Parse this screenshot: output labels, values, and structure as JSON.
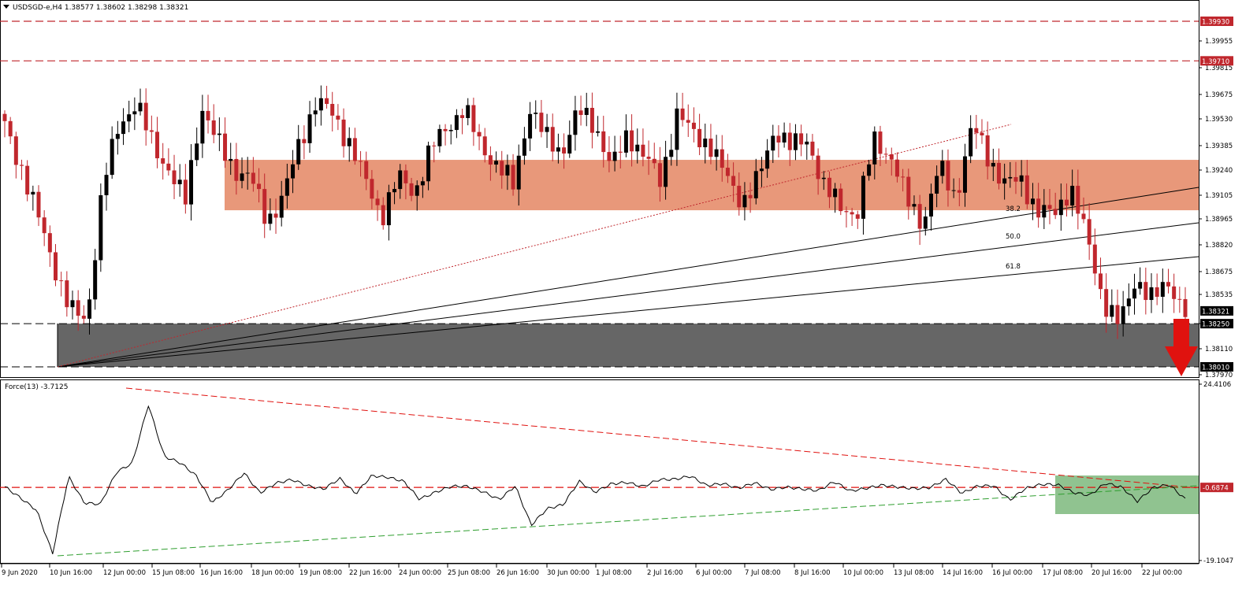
{
  "main_chart": {
    "header": "USDSGD-e,H4  1.38577 1.38602 1.38298 1.38321",
    "y_ticks": [
      "1.39955",
      "1.39815",
      "1.39675",
      "1.39530",
      "1.39385",
      "1.39240",
      "1.39105",
      "1.38965",
      "1.38820",
      "1.38675",
      "1.38535",
      "1.38395",
      "1.38110",
      "1.37970"
    ],
    "price_tags": [
      {
        "label": "1.39930",
        "value": 1.3993,
        "bg": "#c0272d"
      },
      {
        "label": "1.39710",
        "value": 1.3971,
        "bg": "#c0272d"
      },
      {
        "label": "1.38321",
        "value": 1.38321,
        "bg": "#000000"
      },
      {
        "label": "1.38250",
        "value": 1.3825,
        "bg": "#000000"
      },
      {
        "label": "1.38010",
        "value": 1.3801,
        "bg": "#000000"
      }
    ],
    "fib_labels": [
      "38.2",
      "50.0",
      "61.8"
    ],
    "zones": {
      "resistance": {
        "from": 1.3888,
        "to": 1.3916,
        "color": "#e8987a"
      },
      "support": {
        "from": 1.3801,
        "to": 1.3825,
        "color": "#666666"
      }
    },
    "colors": {
      "bull": "#000000",
      "bear": "#c0272d",
      "arrow": "#e0120f"
    }
  },
  "force_indicator": {
    "header": "Force(13) -3.7125",
    "y_ticks": [
      "24.4106",
      "-19.1047"
    ],
    "level_tag": {
      "label": "-0.6874",
      "value": -0.6874,
      "bg": "#c0272d"
    },
    "colors": {
      "line": "#000000",
      "res": "#e0120f",
      "sup": "#2f9e2f",
      "box": "#7cb87c"
    }
  },
  "x_axis": {
    "labels": [
      "9 Jun 2020",
      "10 Jun 16:00",
      "12 Jun 00:00",
      "15 Jun 08:00",
      "16 Jun 16:00",
      "18 Jun 00:00",
      "19 Jun 08:00",
      "22 Jun 16:00",
      "24 Jun 00:00",
      "25 Jun 08:00",
      "26 Jun 16:00",
      "30 Jun 00:00",
      "1 Jul 08:00",
      "2 Jul 16:00",
      "6 Jul 00:00",
      "7 Jul 08:00",
      "8 Jul 16:00",
      "10 Jul 00:00",
      "13 Jul 08:00",
      "14 Jul 16:00",
      "16 Jul 00:00",
      "17 Jul 08:00",
      "20 Jul 16:00",
      "22 Jul 00:00"
    ]
  },
  "chart_data": [
    {
      "type": "candlestick",
      "title": "USDSGD-e,H4",
      "ohlc_last": {
        "open": 1.38577,
        "high": 1.38602,
        "low": 1.38298,
        "close": 1.38321
      },
      "ylim": [
        1.3795,
        1.4003
      ],
      "x": [
        "9 Jun 2020",
        "10 Jun 16:00",
        "12 Jun 00:00",
        "15 Jun 08:00",
        "16 Jun 16:00",
        "18 Jun 00:00",
        "19 Jun 08:00",
        "22 Jun 16:00",
        "24 Jun 00:00",
        "25 Jun 08:00",
        "26 Jun 16:00",
        "30 Jun 00:00",
        "1 Jul 08:00",
        "2 Jul 16:00",
        "6 Jul 00:00",
        "7 Jul 08:00",
        "8 Jul 16:00",
        "10 Jul 00:00",
        "13 Jul 08:00",
        "14 Jul 16:00",
        "16 Jul 00:00",
        "17 Jul 08:00",
        "20 Jul 16:00",
        "22 Jul 00:00"
      ],
      "close_path": [
        1.3935,
        1.3912,
        1.3885,
        1.3858,
        1.3832,
        1.3827,
        1.3903,
        1.3936,
        1.3948,
        1.3925,
        1.3911,
        1.3892,
        1.3946,
        1.3925,
        1.3911,
        1.3906,
        1.3882,
        1.3896,
        1.3926,
        1.3949,
        1.3941,
        1.3926,
        1.3904,
        1.3885,
        1.3906,
        1.3898,
        1.3922,
        1.3935,
        1.3944,
        1.3925,
        1.3913,
        1.3902,
        1.3945,
        1.3928,
        1.3921,
        1.3943,
        1.3936,
        1.3911,
        1.3931,
        1.3918,
        1.3904,
        1.3942,
        1.393,
        1.3925,
        1.3906,
        1.3893,
        1.3906,
        1.3934,
        1.3923,
        1.3927,
        1.39,
        1.389,
        1.3886,
        1.3927,
        1.3919,
        1.3894,
        1.3881,
        1.3912,
        1.3895,
        1.3935,
        1.3917,
        1.3903,
        1.3904,
        1.3888,
        1.3885,
        1.3902,
        1.3872,
        1.3838,
        1.3824,
        1.3851,
        1.3838,
        1.3848,
        1.3832
      ],
      "levels": {
        "resistance_lines": [
          1.3993,
          1.3971
        ],
        "support_lines": [
          1.3825,
          1.3801
        ],
        "resistance_zone": [
          1.3888,
          1.3916
        ],
        "support_zone": [
          1.3801,
          1.3825
        ]
      },
      "fibonacci_fan": [
        "38.2",
        "50.0",
        "61.8"
      ]
    },
    {
      "type": "line",
      "title": "Force(13) -3.7125",
      "ylim": [
        -19.1047,
        24.4106
      ],
      "level": -0.6874,
      "values": [
        -0.5,
        -3.4,
        -6.5,
        -17.5,
        2.1,
        -4.7,
        -4.9,
        3.2,
        5.5,
        20.4,
        7.2,
        5.6,
        2.3,
        -4.6,
        -1.3,
        3.0,
        -2.1,
        0.4,
        1.3,
        -0.3,
        -1.1,
        1.6,
        -2.3,
        2.3,
        1.9,
        0.9,
        -3.7,
        -1.9,
        -0.4,
        -0.4,
        -1.8,
        -3.8,
        -0.3,
        -10.3,
        -6.1,
        -5.1,
        0.9,
        -1.9,
        0.2,
        0.6,
        -0.5,
        1.3,
        1.4,
        2.2,
        -0.2,
        0.3,
        -0.9,
        0.5,
        -1.2,
        -0.6,
        -1.1,
        -1.5,
        0.8,
        -1.6,
        -0.9,
        -0.1,
        -0.6,
        -1.0,
        -0.7,
        1.4,
        -2.2,
        -0.3,
        -0.3,
        -3.9,
        -0.9,
        0.1,
        0.0,
        -2.0,
        -2.7,
        0.4,
        -0.6,
        -4.2,
        -0.7,
        0.0,
        -3.7
      ]
    }
  ]
}
